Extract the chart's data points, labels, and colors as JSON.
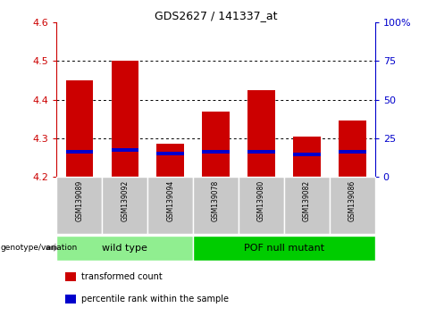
{
  "title": "GDS2627 / 141337_at",
  "samples": [
    "GSM139089",
    "GSM139092",
    "GSM139094",
    "GSM139078",
    "GSM139080",
    "GSM139082",
    "GSM139086"
  ],
  "transformed_counts": [
    4.45,
    4.5,
    4.285,
    4.37,
    4.425,
    4.305,
    4.345
  ],
  "percentile_ranks": [
    4.265,
    4.27,
    4.26,
    4.265,
    4.265,
    4.258,
    4.265
  ],
  "bar_bottom": 4.2,
  "y_min": 4.2,
  "y_max": 4.6,
  "y_ticks": [
    4.2,
    4.3,
    4.4,
    4.5,
    4.6
  ],
  "y2_ticks": [
    0,
    25,
    50,
    75,
    100
  ],
  "y2_tick_labels": [
    "0",
    "25",
    "50",
    "75",
    "100%"
  ],
  "groups": [
    {
      "label": "wild type",
      "indices": [
        0,
        1,
        2
      ],
      "color": "#90ee90"
    },
    {
      "label": "POF null mutant",
      "indices": [
        3,
        4,
        5,
        6
      ],
      "color": "#00cc00"
    }
  ],
  "red_color": "#cc0000",
  "blue_color": "#0000cc",
  "bar_width": 0.6,
  "grid_color": "#000000",
  "tick_color_left": "#cc0000",
  "tick_color_right": "#0000cc",
  "legend_items": [
    {
      "color": "#cc0000",
      "label": "transformed count"
    },
    {
      "color": "#0000cc",
      "label": "percentile rank within the sample"
    }
  ],
  "group_light_green": "#90ee90",
  "group_dark_green": "#00cc00",
  "xticklabel_bg": "#c8c8c8"
}
